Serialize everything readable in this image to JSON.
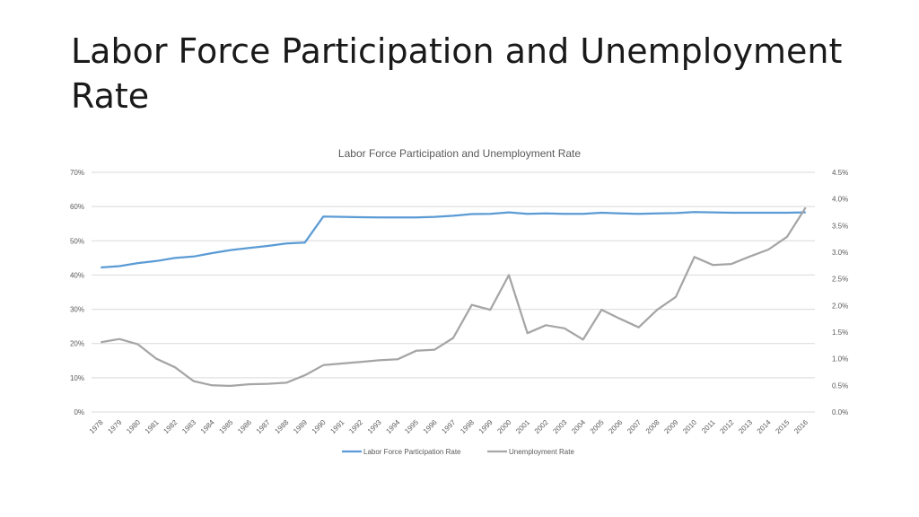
{
  "slide": {
    "title": "Labor Force Participation and Unemployment Rate"
  },
  "colors": {
    "participation": "#5b9bd5",
    "unemployment": "#a5a5a5",
    "grid": "#d9d9d9",
    "text": "#595959"
  },
  "chart_data": {
    "type": "line",
    "title": "Labor Force Participation and Unemployment Rate",
    "x": [
      "1978",
      "1979",
      "1980",
      "1981",
      "1982",
      "1983",
      "1984",
      "1985",
      "1986",
      "1987",
      "1988",
      "1989",
      "1990",
      "1991",
      "1992",
      "1993",
      "1994",
      "1995",
      "1996",
      "1997",
      "1998",
      "1999",
      "2000",
      "2001",
      "2002",
      "2003",
      "2004",
      "2005",
      "2006",
      "2007",
      "2008",
      "2009",
      "2010",
      "2011",
      "2012",
      "2013",
      "2014",
      "2015",
      "2016"
    ],
    "y_left": {
      "ticks": [
        "0%",
        "10%",
        "20%",
        "30%",
        "40%",
        "50%",
        "60%",
        "70%"
      ],
      "range": [
        0,
        70
      ]
    },
    "y_right": {
      "ticks": [
        "0.0%",
        "0.5%",
        "1.0%",
        "1.5%",
        "2.0%",
        "2.5%",
        "3.0%",
        "3.5%",
        "4.0%",
        "4.5%"
      ],
      "range": [
        0,
        4.5
      ]
    },
    "grid": true,
    "legend_position": "bottom",
    "series": [
      {
        "name": "Labor Force Participation Rate",
        "axis": "left",
        "values": [
          42.2,
          42.6,
          43.5,
          44.1,
          45.0,
          45.4,
          46.4,
          47.3,
          47.9,
          48.5,
          49.2,
          49.5,
          57.1,
          57.0,
          56.9,
          56.8,
          56.8,
          56.8,
          57.0,
          57.3,
          57.8,
          57.9,
          58.3,
          57.9,
          58.0,
          57.9,
          57.9,
          58.2,
          58.0,
          57.9,
          58.0,
          58.1,
          58.4,
          58.3,
          58.2,
          58.2,
          58.2,
          58.2,
          58.3
        ]
      },
      {
        "name": "Unemployment Rate",
        "axis": "right",
        "values": [
          1.31,
          1.37,
          1.27,
          1.0,
          0.84,
          0.58,
          0.5,
          0.49,
          0.52,
          0.53,
          0.55,
          0.69,
          0.88,
          0.91,
          0.94,
          0.97,
          0.99,
          1.15,
          1.17,
          1.39,
          2.01,
          1.92,
          2.57,
          1.48,
          1.63,
          1.57,
          1.36,
          1.92,
          1.75,
          1.59,
          1.92,
          2.16,
          2.91,
          2.76,
          2.78,
          2.92,
          3.05,
          3.29,
          3.84
        ]
      }
    ]
  }
}
